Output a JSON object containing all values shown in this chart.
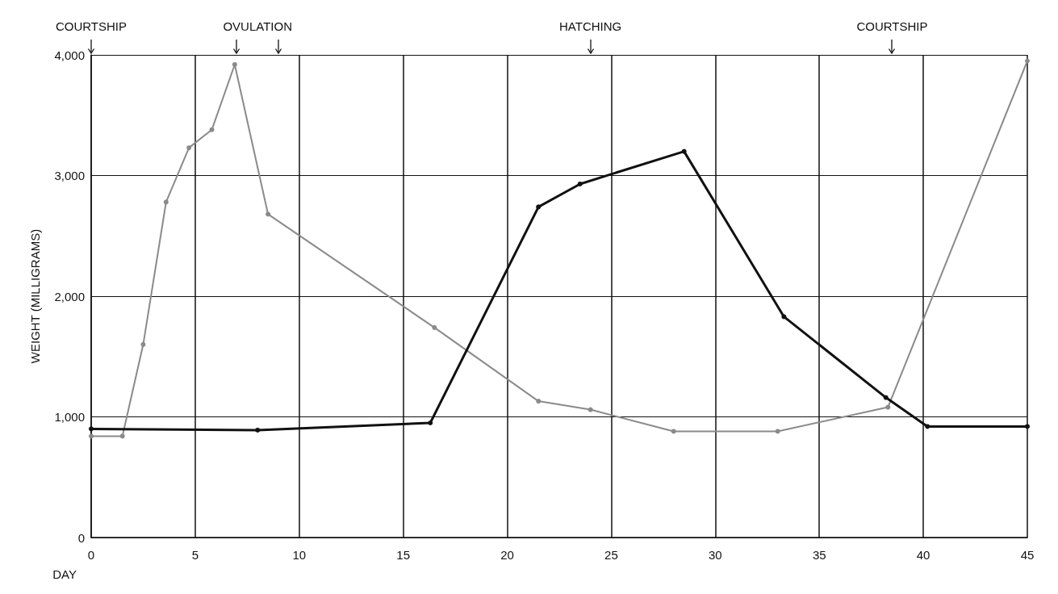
{
  "chart_data": {
    "type": "line",
    "xlabel": "DAY",
    "ylabel": "WEIGHT (MILLIGRAMS)",
    "series": [
      {
        "color": "#8a8a8a",
        "x": [
          0,
          1.5,
          2.5,
          3.6,
          4.7,
          5.8,
          6.9,
          8.5,
          16.5,
          21.5,
          24,
          28,
          33,
          38.3,
          45
        ],
        "values": [
          840,
          840,
          1600,
          2780,
          3230,
          3380,
          3920,
          2680,
          1740,
          1130,
          1060,
          880,
          880,
          1080,
          3950
        ]
      },
      {
        "color": "#111111",
        "x": [
          0,
          8,
          16.3,
          21.5,
          23.5,
          28.5,
          33.3,
          38.2,
          40.2,
          45
        ],
        "values": [
          900,
          890,
          950,
          2740,
          2930,
          3200,
          1830,
          1160,
          920,
          920
        ]
      }
    ],
    "xlim": [
      0,
      45
    ],
    "xticks": [
      0,
      5,
      10,
      15,
      20,
      25,
      30,
      35,
      40,
      45
    ],
    "ylim": [
      0,
      4000
    ],
    "yticks": [
      0,
      {
        "value": 1000,
        "label": "1,000"
      },
      {
        "value": 2000,
        "label": "2,000"
      },
      {
        "value": 3000,
        "label": "3,000"
      },
      {
        "value": 4000,
        "label": "4,000"
      }
    ],
    "grid": true,
    "marker": "circle",
    "line_style": "solid",
    "annotations": [
      "COURTSHIP",
      "OVULATION",
      "HATCHING",
      "COURTSHIP"
    ]
  }
}
